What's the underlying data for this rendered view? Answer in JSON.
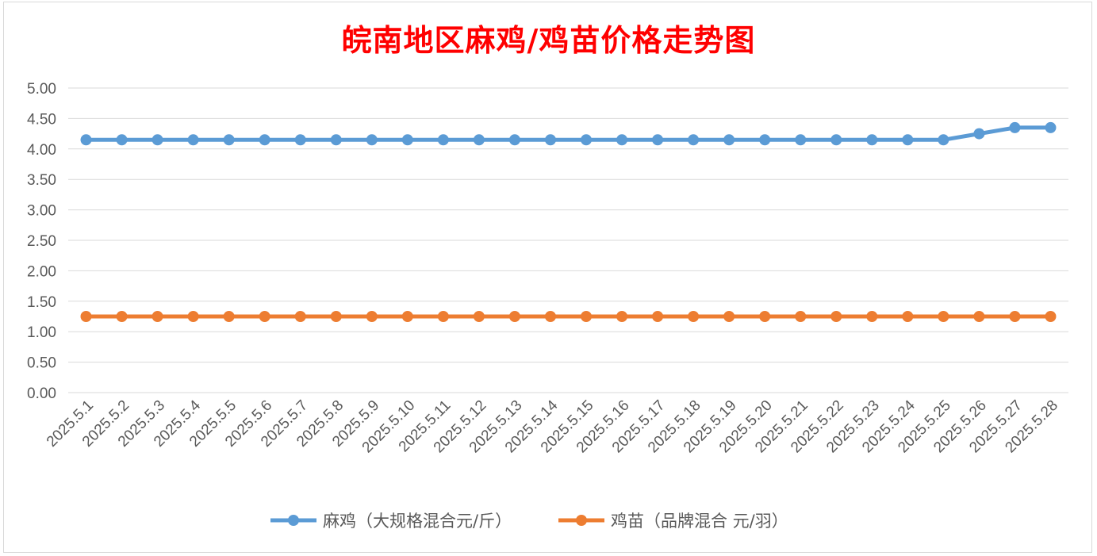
{
  "chart_data": {
    "type": "line",
    "title": "皖南地区麻鸡/鸡苗价格走势图",
    "x": [
      "2025.5.1",
      "2025.5.2",
      "2025.5.3",
      "2025.5.4",
      "2025.5.5",
      "2025.5.6",
      "2025.5.7",
      "2025.5.8",
      "2025.5.9",
      "2025.5.10",
      "2025.5.11",
      "2025.5.12",
      "2025.5.13",
      "2025.5.14",
      "2025.5.15",
      "2025.5.16",
      "2025.5.17",
      "2025.5.18",
      "2025.5.19",
      "2025.5.20",
      "2025.5.21",
      "2025.5.22",
      "2025.5.23",
      "2025.5.24",
      "2025.5.25",
      "2025.5.26",
      "2025.5.27",
      "2025.5.28"
    ],
    "series": [
      {
        "name": "麻鸡（大规格混合元/斤）",
        "color": "#5b9bd5",
        "values": [
          4.15,
          4.15,
          4.15,
          4.15,
          4.15,
          4.15,
          4.15,
          4.15,
          4.15,
          4.15,
          4.15,
          4.15,
          4.15,
          4.15,
          4.15,
          4.15,
          4.15,
          4.15,
          4.15,
          4.15,
          4.15,
          4.15,
          4.15,
          4.15,
          4.15,
          4.25,
          4.35,
          4.35
        ]
      },
      {
        "name": "鸡苗（品牌混合 元/羽）",
        "color": "#ed7d31",
        "values": [
          1.25,
          1.25,
          1.25,
          1.25,
          1.25,
          1.25,
          1.25,
          1.25,
          1.25,
          1.25,
          1.25,
          1.25,
          1.25,
          1.25,
          1.25,
          1.25,
          1.25,
          1.25,
          1.25,
          1.25,
          1.25,
          1.25,
          1.25,
          1.25,
          1.25,
          1.25,
          1.25,
          1.25
        ]
      }
    ],
    "yticks": [
      "0.00",
      "0.50",
      "1.00",
      "1.50",
      "2.00",
      "2.50",
      "3.00",
      "3.50",
      "4.00",
      "4.50",
      "5.00"
    ],
    "ylim": [
      0,
      5
    ],
    "grid": true,
    "legend": "bottom"
  }
}
